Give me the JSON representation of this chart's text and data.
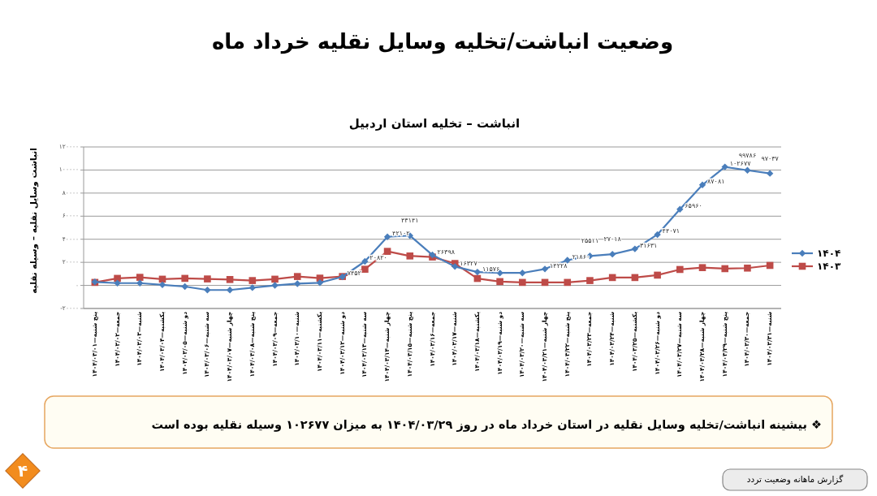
{
  "chart_data": {
    "type": "line",
    "title": "وضعیت انباشت/تخلیه وسایل نقلیه خرداد ماه",
    "subtitle": "انباشت – تخلیه استان اردبیل",
    "ylabel": "انباشت وسایل نقلیه – وسیله نقلیه",
    "categories": [
      "پنج شنبه—۱۴۰۴/۰۳/۰۱",
      "جمعه—۱۴۰۴/۰۳/۰۲",
      "شنبه—۱۴۰۴/۰۳/۰۳",
      "یکشنبه—۱۴۰۴/۰۳/۰۴",
      "دو شنبه—۱۴۰۴/۰۳/۰۵",
      "سه شنبه—۱۴۰۴/۰۳/۰۶",
      "چهار شنبه—۱۴۰۴/۰۳/۰۷",
      "پنج شنبه—۱۴۰۴/۰۳/۰۸",
      "جمعه—۱۴۰۴/۰۳/۰۹",
      "شنبه—۱۴۰۴/۰۳/۱۰",
      "یکشنبه—۱۴۰۴/۰۳/۱۱",
      "دو شنبه—۱۴۰۴/۰۳/۱۲",
      "سه شنبه—۱۴۰۴/۰۳/۱۳",
      "چهار شنبه—۱۴۰۴/۰۳/۱۴",
      "پنج شنبه—۱۴۰۴/۰۳/۱۵",
      "جمعه—۱۴۰۴/۰۳/۱۶",
      "شنبه—۱۴۰۴/۰۳/۱۷",
      "یکشنبه—۱۴۰۴/۰۳/۱۸",
      "دو شنبه—۱۴۰۴/۰۳/۱۹",
      "سه شنبه—۱۴۰۴/۰۳/۲۰",
      "چهار شنبه—۱۴۰۴/۰۳/۲۱",
      "پنج شنبه—۱۴۰۴/۰۳/۲۲",
      "جمعه—۱۴۰۴/۰۳/۲۳",
      "شنبه—۱۴۰۴/۰۳/۲۴",
      "یکشنبه—۱۴۰۴/۰۳/۲۵",
      "دو شنبه—۱۴۰۴/۰۳/۲۶",
      "سه شنبه—۱۴۰۴/۰۳/۲۷",
      "چهار شنبه—۱۴۰۴/۰۳/۲۸",
      "پنج شنبه—۱۴۰۴/۰۳/۲۹",
      "جمعه—۱۴۰۴/۰۳/۳۰",
      "شنبه—۱۴۰۴/۰۳/۳۱"
    ],
    "ylim": [
      -20000,
      120000
    ],
    "yticks": [
      {
        "value": -20000,
        "label": "-۲۰۰۰۰"
      },
      {
        "value": 0,
        "label": "۰"
      },
      {
        "value": 20000,
        "label": "۲۰۰۰۰"
      },
      {
        "value": 40000,
        "label": "۴۰۰۰۰"
      },
      {
        "value": 60000,
        "label": "۶۰۰۰۰"
      },
      {
        "value": 80000,
        "label": "۸۰۰۰۰"
      },
      {
        "value": 100000,
        "label": "۱۰۰۰۰۰"
      },
      {
        "value": 120000,
        "label": "۱۲۰۰۰۰"
      }
    ],
    "grid": "y",
    "legend": "right",
    "series": [
      {
        "name": "۱۴۰۴",
        "color": "#4a7ebb",
        "marker": "diamond",
        "values": [
          3000,
          2000,
          2000,
          500,
          -1000,
          -4000,
          -4000,
          -2000,
          0,
          1500,
          2300,
          7452,
          20820,
          42102,
          43141,
          26398,
          16327,
          11576,
          10800,
          10800,
          14228,
          21860,
          25511,
          27018,
          31631,
          44071,
          65960,
          87081,
          102677,
          99786,
          97037
        ],
        "value_labels": [
          null,
          null,
          null,
          null,
          null,
          null,
          null,
          null,
          null,
          null,
          null,
          "۷۴۵۲",
          "۲۰۸۲۰",
          "۴۲۱۰۲",
          "۴۳۱۴۱",
          "۲۶۳۹۸",
          "۱۶۳۲۷",
          "۱۱۵۷۶",
          null,
          null,
          "۱۴۲۲۸",
          "۲۱۸۶۰",
          "۲۵۵۱۱",
          "۲۷۰۱۸",
          "۳۱۶۳۱",
          "۴۴۰۷۱",
          "۶۵۹۶۰",
          "۸۷۰۸۱",
          "۱۰۲۶۷۷",
          "۹۹۷۸۶",
          "۹۷۰۳۷"
        ]
      },
      {
        "name": "۱۴۰۳",
        "color": "#be4b48",
        "marker": "square",
        "values": [
          2600,
          6100,
          7000,
          5400,
          6100,
          5600,
          5100,
          4200,
          5400,
          7700,
          6300,
          7700,
          14000,
          29500,
          25500,
          24600,
          19000,
          6000,
          3300,
          2600,
          2600,
          2600,
          4200,
          6800,
          6800,
          8900,
          13800,
          15400,
          14500,
          15000,
          17300
        ]
      }
    ],
    "annotations": [
      "❖ بیشینه انباشت/تخلیه وسایل نقلیه در استان خرداد ماه در روز ۱۴۰۴/۰۳/۲۹ به میزان ۱۰۲۶۷۷ وسیله نقلیه بوده است",
      "گزارش ماهانه وضعیت تردد",
      "۴"
    ]
  }
}
